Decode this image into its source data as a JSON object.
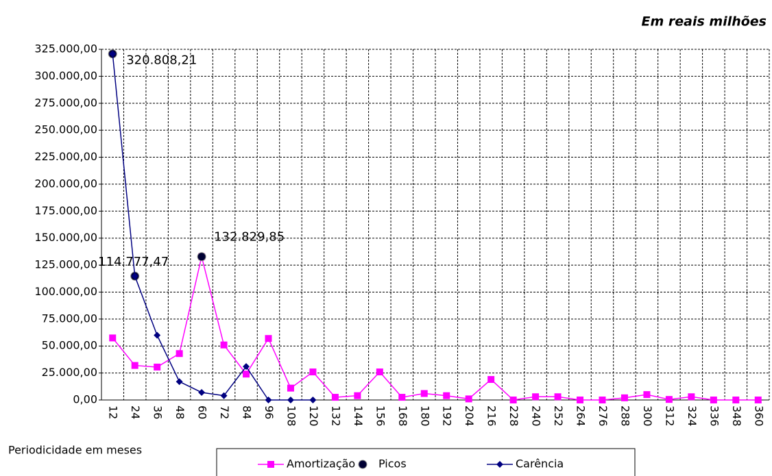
{
  "chart_data": {
    "type": "line",
    "title": "Em reais milhões",
    "x_label": "Periodicidade em meses",
    "categories": [
      12,
      24,
      36,
      48,
      60,
      72,
      84,
      96,
      108,
      120,
      132,
      144,
      156,
      168,
      180,
      192,
      204,
      216,
      228,
      240,
      252,
      264,
      276,
      288,
      300,
      312,
      324,
      336,
      348,
      360
    ],
    "series": [
      {
        "name": "Amortização",
        "color": "#ff00ff",
        "marker": "square",
        "values": [
          57500,
          32000,
          30500,
          43000,
          132829.85,
          51000,
          24000,
          57000,
          11000,
          26000,
          2500,
          4000,
          26000,
          2500,
          6000,
          4000,
          1000,
          19000,
          0,
          3000,
          3000,
          0,
          0,
          2000,
          5000,
          500,
          3000,
          0,
          0,
          0
        ]
      },
      {
        "name": "Picos",
        "color": "#000033",
        "marker": "circle",
        "line": false,
        "values": [
          320808.21,
          114777.47,
          null,
          null,
          132829.85,
          null,
          null,
          null,
          null,
          null,
          null,
          null,
          null,
          null,
          null,
          null,
          null,
          null,
          null,
          null,
          null,
          null,
          null,
          null,
          null,
          null,
          null,
          null,
          null,
          null
        ],
        "value_labels": [
          "320.808,21",
          "114.777,47",
          null,
          null,
          "132.829,85",
          null,
          null,
          null,
          null,
          null,
          null,
          null,
          null,
          null,
          null,
          null,
          null,
          null,
          null,
          null,
          null,
          null,
          null,
          null,
          null,
          null,
          null,
          null,
          null,
          null
        ]
      },
      {
        "name": "Carência",
        "color": "#000080",
        "marker": "diamond",
        "values": [
          320808.21,
          114777.47,
          60000,
          17000,
          7000,
          4000,
          31000,
          0,
          0,
          0,
          null,
          null,
          null,
          null,
          null,
          null,
          null,
          null,
          null,
          null,
          null,
          null,
          null,
          null,
          null,
          null,
          null,
          null,
          null,
          null
        ]
      }
    ],
    "ylim": [
      0,
      325000
    ],
    "yticks": [
      {
        "value": 0,
        "label": "0,00"
      },
      {
        "value": 25000,
        "label": "25.000,00"
      },
      {
        "value": 50000,
        "label": "50.000,00"
      },
      {
        "value": 75000,
        "label": "75.000,00"
      },
      {
        "value": 100000,
        "label": "100.000,00"
      },
      {
        "value": 125000,
        "label": "125.000,00"
      },
      {
        "value": 150000,
        "label": "150.000,00"
      },
      {
        "value": 175000,
        "label": "175.000,00"
      },
      {
        "value": 200000,
        "label": "200.000,00"
      },
      {
        "value": 225000,
        "label": "225.000,00"
      },
      {
        "value": 250000,
        "label": "250.000,00"
      },
      {
        "value": 275000,
        "label": "275.000,00"
      },
      {
        "value": 300000,
        "label": "300.000,00"
      },
      {
        "value": 325000,
        "label": "325.000,00"
      }
    ],
    "grid": true
  }
}
